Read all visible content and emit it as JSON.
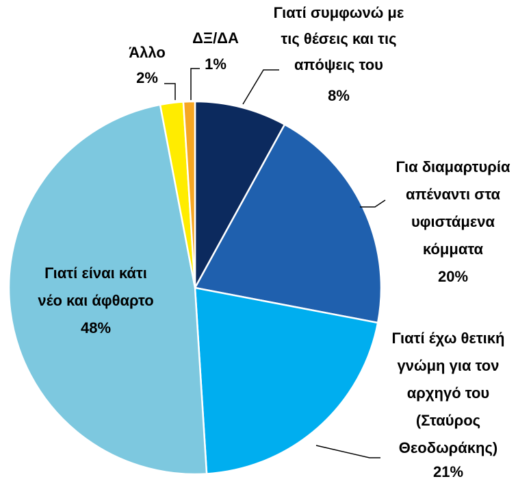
{
  "chart_data": {
    "type": "pie",
    "categories": [
      [
        "Γιατί συμφωνώ με",
        "τις θέσεις και τις",
        "απόψεις του"
      ],
      [
        "Για διαμαρτυρία",
        "απέναντι στα",
        "υφιστάμενα",
        "κόμματα"
      ],
      [
        "Γιατί έχω θετική",
        "γνώμη για τον",
        "αρχηγό του",
        "(Σταύρος",
        "Θεοδωράκης)"
      ],
      [
        "Γιατί είναι κάτι",
        "νέο και άφθαρτο"
      ],
      [
        "Άλλο"
      ],
      [
        "ΔΞ/ΔΑ"
      ]
    ],
    "values": [
      8,
      20,
      21,
      48,
      2,
      1
    ],
    "value_labels": [
      "8%",
      "20%",
      "21%",
      "48%",
      "2%",
      "1%"
    ],
    "colors": [
      "#0c2a5e",
      "#1f60ae",
      "#00aeef",
      "#7dc8df",
      "#ffec00",
      "#f6a623"
    ]
  }
}
